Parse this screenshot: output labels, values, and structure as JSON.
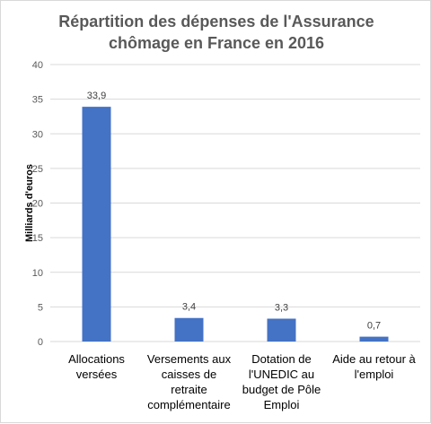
{
  "chart_data": {
    "type": "bar",
    "title_lines": [
      "Répartition des dépenses de l'Assurance",
      "chômage en France en 2016"
    ],
    "ylabel": "Milliards d'euros",
    "xlabel": "",
    "ylim": [
      0,
      40
    ],
    "yticks": [
      0,
      5,
      10,
      15,
      20,
      25,
      30,
      35,
      40
    ],
    "categories": [
      [
        "Allocations",
        "versées"
      ],
      [
        "Versements aux",
        "caisses de",
        "retraite",
        "complémentaire"
      ],
      [
        "Dotation de",
        "l'UNEDIC au",
        "budget de Pôle",
        "Emploi"
      ],
      [
        "Aide au retour à",
        "l'emploi"
      ]
    ],
    "values": [
      33.9,
      3.4,
      3.3,
      0.7
    ],
    "value_labels": [
      "33,9",
      "3,4",
      "3,3",
      "0,7"
    ],
    "grid": true,
    "legend": "none",
    "colors": {
      "bar": "#4472c4",
      "grid": "#d9d9d9",
      "axis": "#d9d9d9"
    }
  }
}
